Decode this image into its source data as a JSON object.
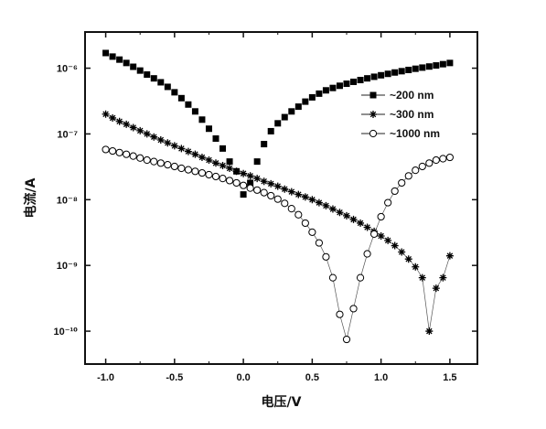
{
  "chart_data": {
    "type": "scatter",
    "title": "",
    "xlabel": "电压/V",
    "ylabel": "电流/A",
    "xlim": [
      -1.15,
      1.7
    ],
    "ylim": [
      -10.5,
      -5.45
    ],
    "y_scale": "log",
    "grid": false,
    "legend_position": "top-right",
    "x_ticks": [
      -1.0,
      -0.5,
      0.0,
      0.5,
      1.0,
      1.5
    ],
    "x_tick_labels": [
      "-1.0",
      "-0.5",
      "0.0",
      "0.5",
      "1.0",
      "1.5"
    ],
    "y_ticks": [
      -6,
      -7,
      -8,
      -9,
      -10
    ],
    "y_tick_labels": [
      "10⁻⁶",
      "10⁻⁷",
      "10⁻⁸",
      "10⁻⁹",
      "10⁻¹⁰"
    ],
    "series": [
      {
        "name": "~200 nm",
        "marker": "filled-square",
        "color": "#000000",
        "x": [
          -1.0,
          -0.95,
          -0.9,
          -0.85,
          -0.8,
          -0.75,
          -0.7,
          -0.65,
          -0.6,
          -0.55,
          -0.5,
          -0.45,
          -0.4,
          -0.35,
          -0.3,
          -0.25,
          -0.2,
          -0.15,
          -0.1,
          -0.05,
          0.0,
          0.05,
          0.1,
          0.15,
          0.2,
          0.25,
          0.3,
          0.35,
          0.4,
          0.45,
          0.5,
          0.55,
          0.6,
          0.65,
          0.7,
          0.75,
          0.8,
          0.85,
          0.9,
          0.95,
          1.0,
          1.05,
          1.1,
          1.15,
          1.2,
          1.25,
          1.3,
          1.35,
          1.4,
          1.45,
          1.5
        ],
        "y": [
          1.7e-06,
          1.5e-06,
          1.35e-06,
          1.2e-06,
          1.05e-06,
          9.2e-07,
          8e-07,
          7e-07,
          6.1e-07,
          5.2e-07,
          4.3e-07,
          3.5e-07,
          2.8e-07,
          2.2e-07,
          1.65e-07,
          1.2e-07,
          8.5e-08,
          6e-08,
          3.8e-08,
          2.7e-08,
          1.2e-08,
          1.8e-08,
          3.8e-08,
          7e-08,
          1.1e-07,
          1.45e-07,
          1.8e-07,
          2.2e-07,
          2.6e-07,
          3.1e-07,
          3.6e-07,
          4.1e-07,
          4.6e-07,
          5e-07,
          5.4e-07,
          5.8e-07,
          6.2e-07,
          6.6e-07,
          7e-07,
          7.4e-07,
          7.8e-07,
          8.2e-07,
          8.6e-07,
          9e-07,
          9.4e-07,
          9.8e-07,
          1.02e-06,
          1.06e-06,
          1.1e-06,
          1.15e-06,
          1.2e-06
        ]
      },
      {
        "name": "~300 nm",
        "marker": "asterisk",
        "color": "#000000",
        "x": [
          -1.0,
          -0.95,
          -0.9,
          -0.85,
          -0.8,
          -0.75,
          -0.7,
          -0.65,
          -0.6,
          -0.55,
          -0.5,
          -0.45,
          -0.4,
          -0.35,
          -0.3,
          -0.25,
          -0.2,
          -0.15,
          -0.1,
          -0.05,
          0.0,
          0.05,
          0.1,
          0.15,
          0.2,
          0.25,
          0.3,
          0.35,
          0.4,
          0.45,
          0.5,
          0.55,
          0.6,
          0.65,
          0.7,
          0.75,
          0.8,
          0.85,
          0.9,
          0.95,
          1.0,
          1.05,
          1.1,
          1.15,
          1.2,
          1.25,
          1.3,
          1.35,
          1.4,
          1.45,
          1.5
        ],
        "y": [
          2e-07,
          1.75e-07,
          1.55e-07,
          1.4e-07,
          1.25e-07,
          1.12e-07,
          1e-07,
          9e-08,
          8.1e-08,
          7.3e-08,
          6.6e-08,
          6e-08,
          5.4e-08,
          4.9e-08,
          4.4e-08,
          4e-08,
          3.6e-08,
          3.3e-08,
          3e-08,
          2.7e-08,
          2.5e-08,
          2.3e-08,
          2.1e-08,
          1.9e-08,
          1.75e-08,
          1.6e-08,
          1.45e-08,
          1.32e-08,
          1.2e-08,
          1.1e-08,
          1e-08,
          9e-09,
          8.1e-09,
          7.2e-09,
          6.4e-09,
          5.7e-09,
          5e-09,
          4.4e-09,
          3.8e-09,
          3.3e-09,
          2.8e-09,
          2.4e-09,
          2e-09,
          1.6e-09,
          1.25e-09,
          9.5e-10,
          6.5e-10,
          1e-10,
          4.5e-10,
          6.5e-10,
          1.4e-09
        ]
      },
      {
        "name": "~1000 nm",
        "marker": "open-circle",
        "color": "#000000",
        "x": [
          -1.0,
          -0.95,
          -0.9,
          -0.85,
          -0.8,
          -0.75,
          -0.7,
          -0.65,
          -0.6,
          -0.55,
          -0.5,
          -0.45,
          -0.4,
          -0.35,
          -0.3,
          -0.25,
          -0.2,
          -0.15,
          -0.1,
          -0.05,
          0.0,
          0.05,
          0.1,
          0.15,
          0.2,
          0.25,
          0.3,
          0.35,
          0.4,
          0.45,
          0.5,
          0.55,
          0.6,
          0.65,
          0.7,
          0.75,
          0.8,
          0.85,
          0.9,
          0.95,
          1.0,
          1.05,
          1.1,
          1.15,
          1.2,
          1.25,
          1.3,
          1.35,
          1.4,
          1.45,
          1.5
        ],
        "y": [
          5.8e-08,
          5.5e-08,
          5.2e-08,
          4.9e-08,
          4.6e-08,
          4.3e-08,
          4e-08,
          3.8e-08,
          3.6e-08,
          3.4e-08,
          3.2e-08,
          3e-08,
          2.85e-08,
          2.7e-08,
          2.55e-08,
          2.4e-08,
          2.25e-08,
          2.1e-08,
          1.95e-08,
          1.8e-08,
          1.65e-08,
          1.5e-08,
          1.4e-08,
          1.28e-08,
          1.15e-08,
          1.02e-08,
          8.8e-09,
          7.3e-09,
          5.9e-09,
          4.4e-09,
          3.2e-09,
          2.2e-09,
          1.35e-09,
          6.5e-10,
          1.8e-10,
          7.5e-11,
          2.2e-10,
          6.5e-10,
          1.5e-09,
          3e-09,
          5.5e-09,
          9e-09,
          1.35e-08,
          1.8e-08,
          2.3e-08,
          2.8e-08,
          3.2e-08,
          3.6e-08,
          4e-08,
          4.2e-08,
          4.4e-08
        ]
      }
    ]
  }
}
